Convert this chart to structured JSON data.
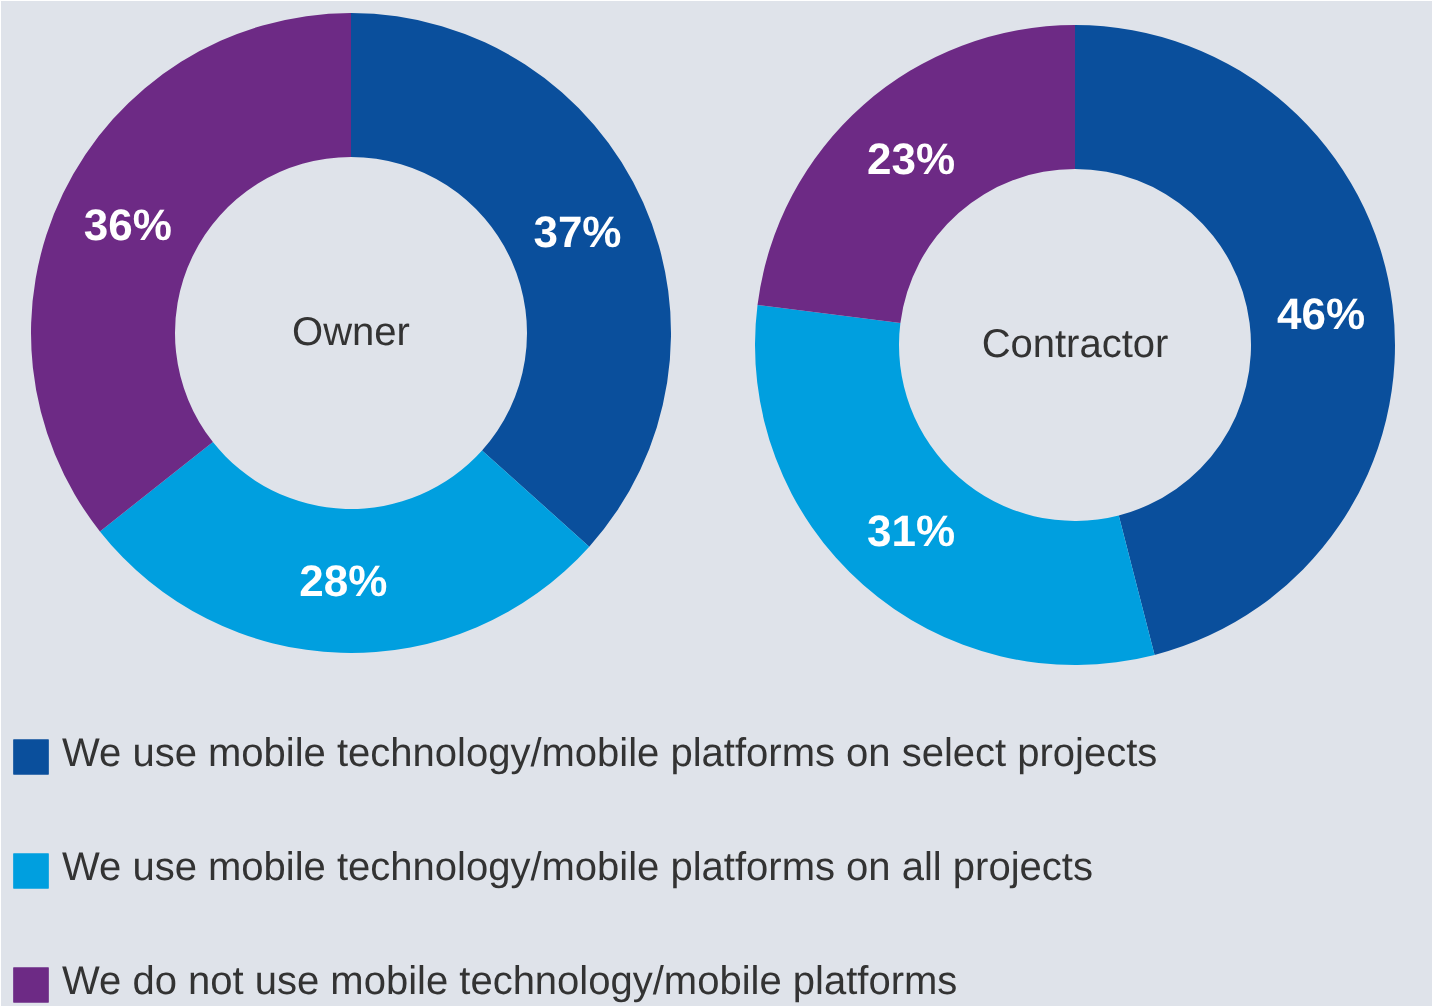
{
  "chart_data": {
    "type": "donut",
    "categories": [
      "We use mobile technology/mobile platforms on select projects",
      "We use mobile technology/mobile platforms on all projects",
      "We do not use mobile technology/mobile platforms"
    ],
    "colors": [
      "#0a4f9c",
      "#009fdf",
      "#6d2a85"
    ],
    "legend": "bottom",
    "series": [
      {
        "name": "Owner",
        "values": [
          37,
          28,
          36
        ],
        "value_labels": [
          "37%",
          "28%",
          "36%"
        ]
      },
      {
        "name": "Contractor",
        "values": [
          46,
          31,
          23
        ],
        "value_labels": [
          "46%",
          "31%",
          "23%"
        ]
      }
    ]
  }
}
